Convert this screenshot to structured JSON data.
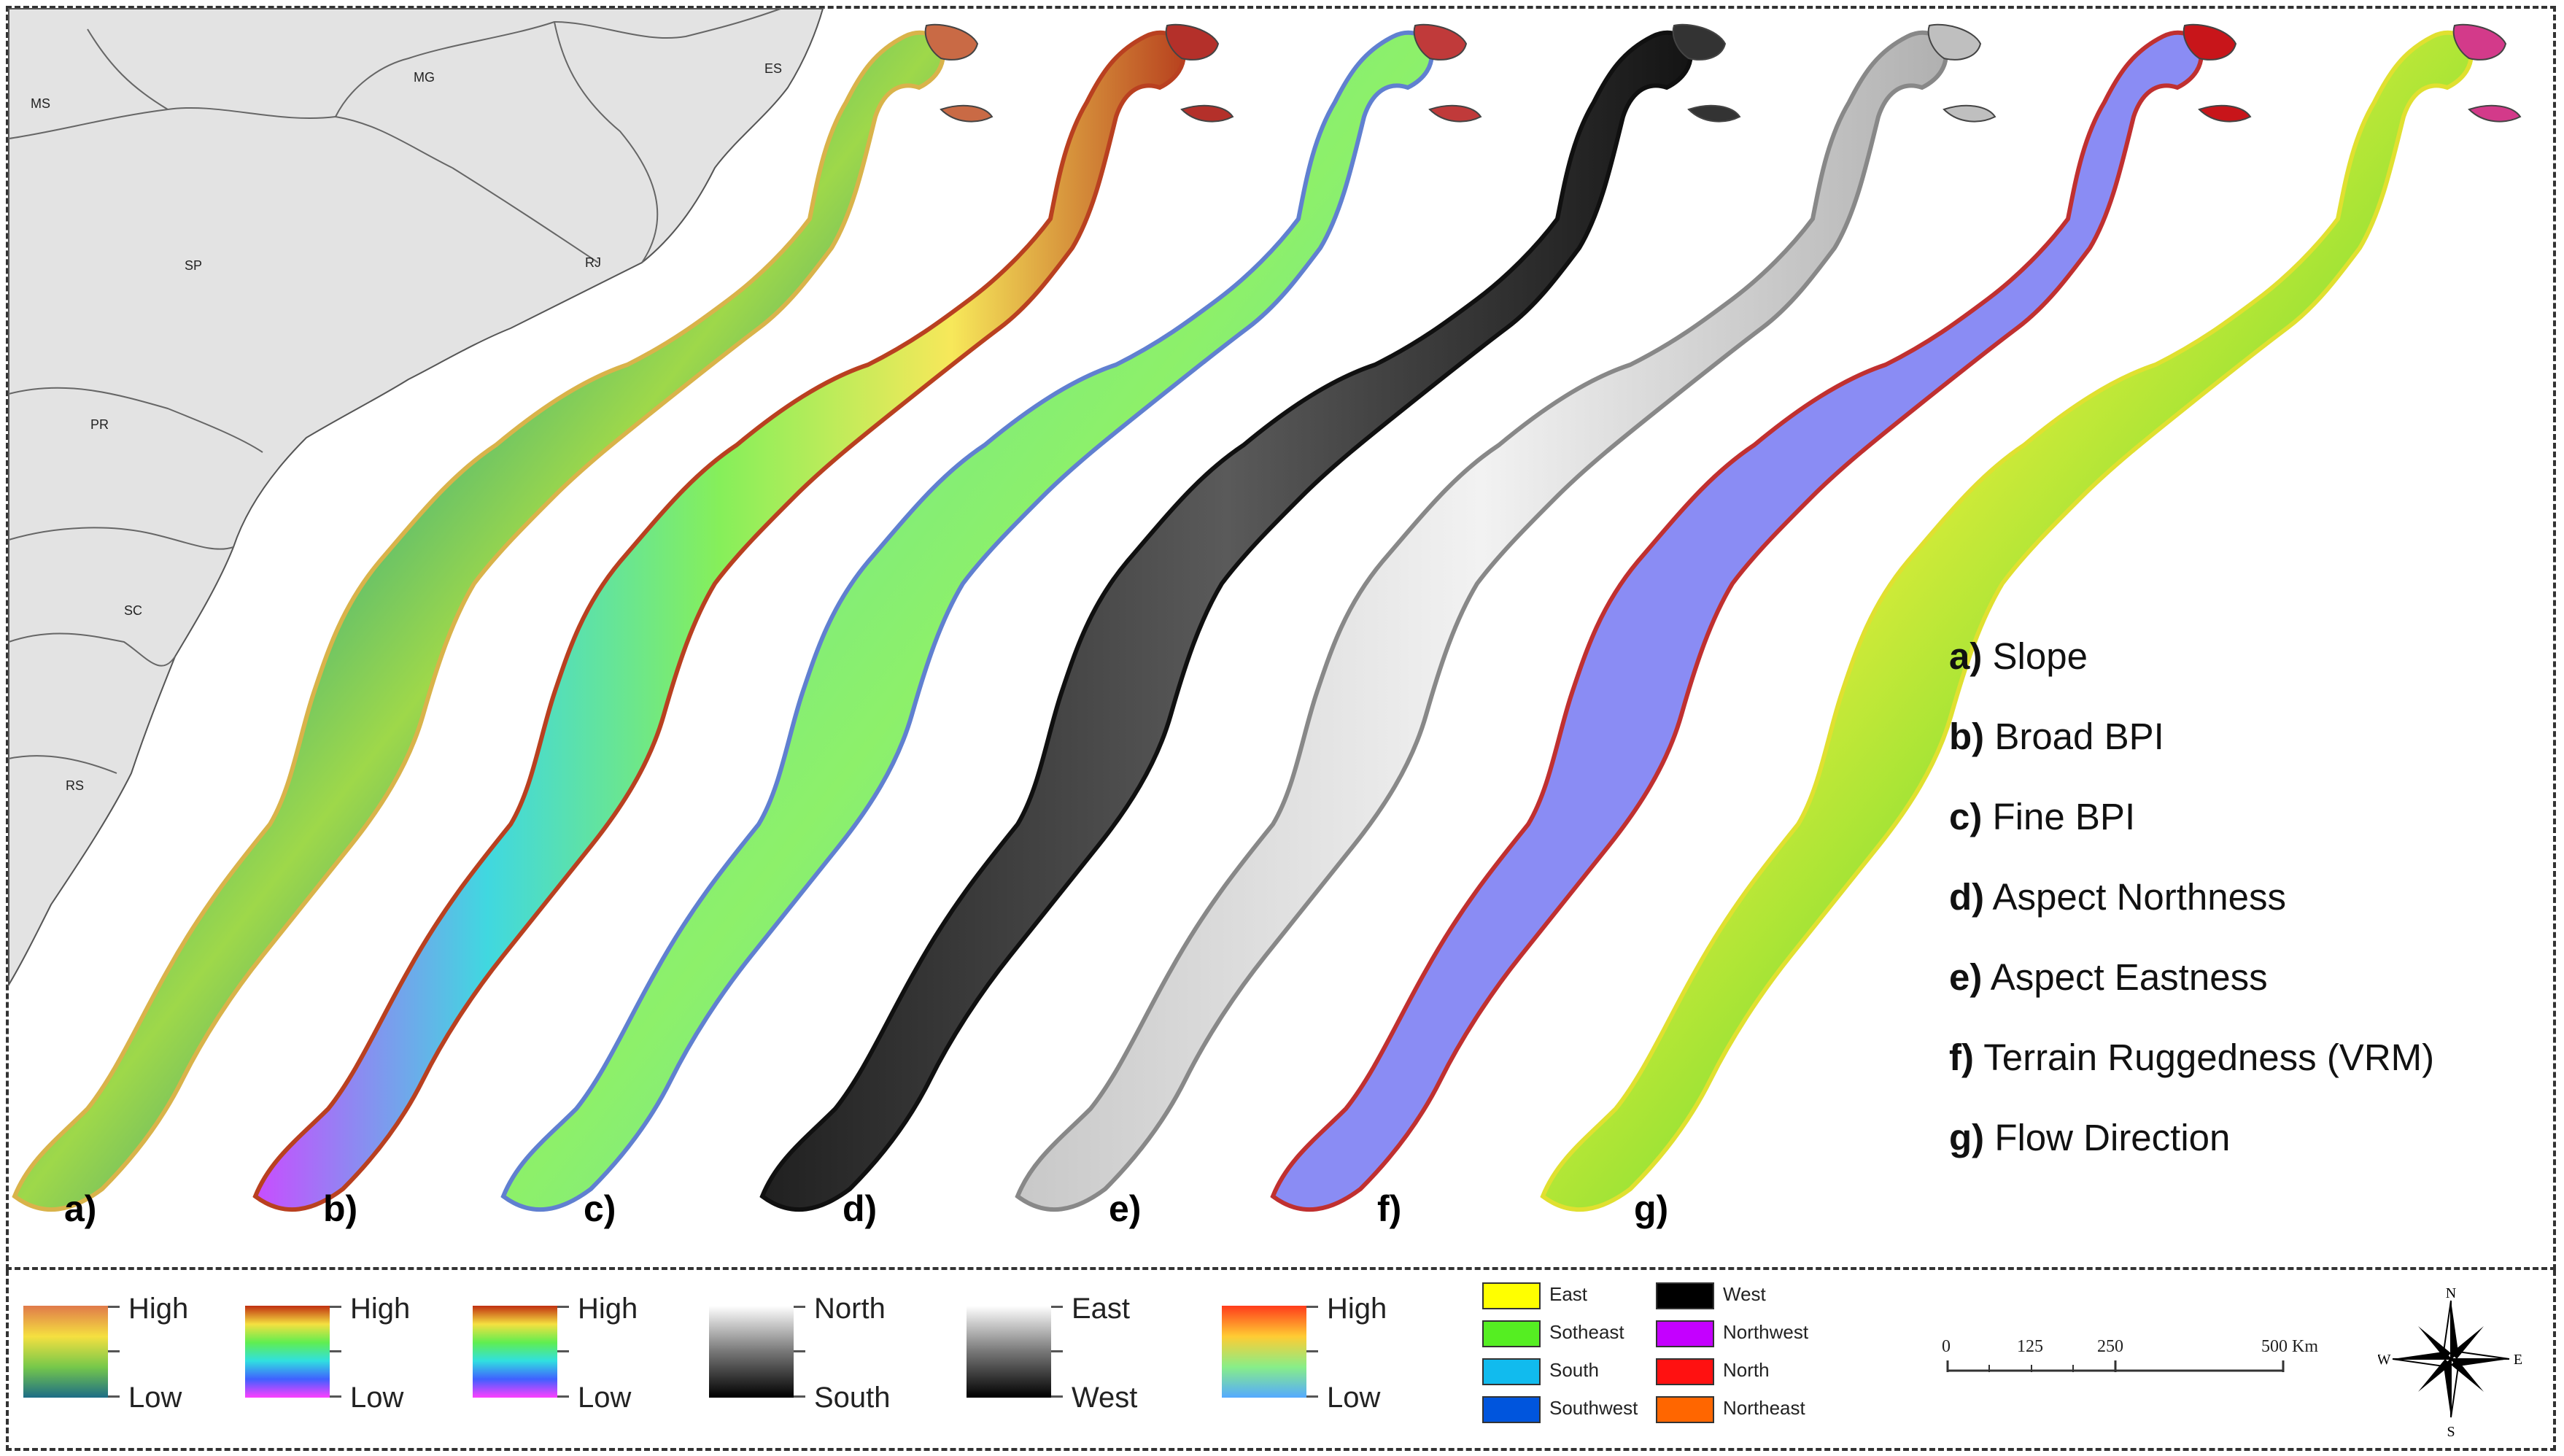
{
  "states": [
    "MS",
    "MG",
    "ES",
    "SP",
    "RJ",
    "PR",
    "SC",
    "RS"
  ],
  "panel_letters": [
    "a)",
    "b)",
    "c)",
    "d)",
    "e)",
    "f)",
    "g)"
  ],
  "layers": [
    {
      "letter": "a)",
      "name": "Slope"
    },
    {
      "letter": "b)",
      "name": "Broad BPI"
    },
    {
      "letter": "c)",
      "name": "Fine BPI"
    },
    {
      "letter": "d)",
      "name": "Aspect Northness"
    },
    {
      "letter": "e)",
      "name": "Aspect Eastness"
    },
    {
      "letter": "f)",
      "name": "Terrain Ruggedness (VRM)"
    },
    {
      "letter": "g)",
      "name": "Flow Direction"
    }
  ],
  "legends": {
    "slope": {
      "high": "High",
      "low": "Low"
    },
    "broad_bpi": {
      "high": "High",
      "low": "Low"
    },
    "fine_bpi": {
      "high": "High",
      "low": "Low"
    },
    "northness": {
      "high": "North",
      "low": "South"
    },
    "eastness": {
      "high": "East",
      "low": "West"
    },
    "vrm": {
      "high": "High",
      "low": "Low"
    }
  },
  "flow_direction": [
    {
      "label": "East",
      "color": "#ffff00"
    },
    {
      "label": "West",
      "color": "#000000"
    },
    {
      "label": "Sotheast",
      "color": "#55ee22"
    },
    {
      "label": "Northwest",
      "color": "#c400ff"
    },
    {
      "label": "South",
      "color": "#11bbee"
    },
    {
      "label": "North",
      "color": "#ff1111"
    },
    {
      "label": "Southwest",
      "color": "#0055dd"
    },
    {
      "label": "Northeast",
      "color": "#ff6600"
    }
  ],
  "scale_bar": {
    "ticks": [
      "0",
      "125",
      "250",
      "500 Km"
    ]
  },
  "compass": {
    "n": "N",
    "s": "S",
    "e": "E",
    "w": "W"
  }
}
